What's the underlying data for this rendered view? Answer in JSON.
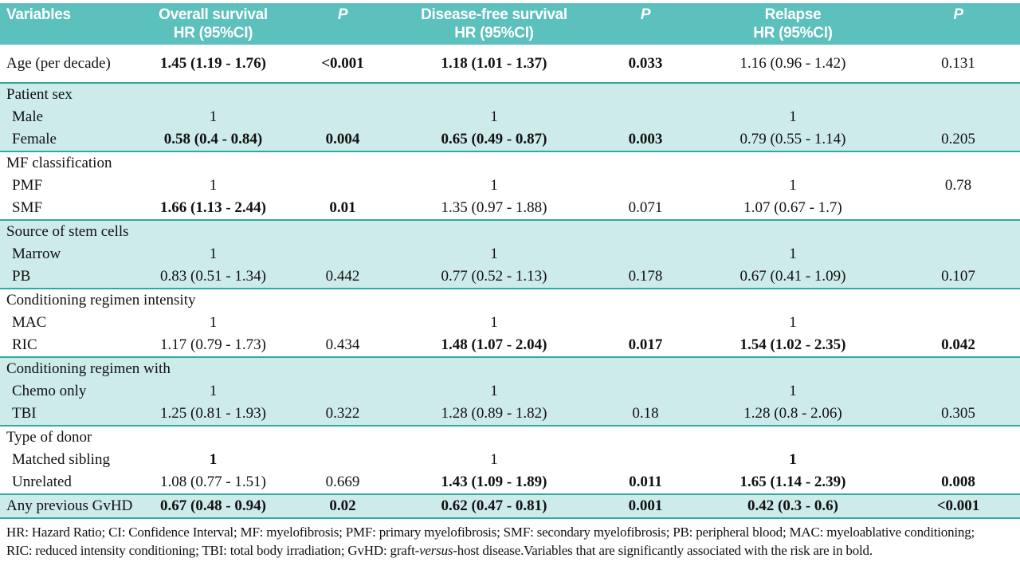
{
  "colors": {
    "header_bg": "#5cc0bc",
    "header_text": "#ffffff",
    "shade_bg": "#cdebe9",
    "line": "#2fa9a5",
    "body_text": "#111111"
  },
  "table": {
    "header": {
      "columns": [
        {
          "label": "Variables",
          "sub": ""
        },
        {
          "label": "Overall survival",
          "sub": "HR (95%CI)"
        },
        {
          "label": "P",
          "sub": ""
        },
        {
          "label": "Disease-free survival",
          "sub": "HR (95%CI)"
        },
        {
          "label": "P",
          "sub": ""
        },
        {
          "label": "Relapse",
          "sub": "HR (95%CI)"
        },
        {
          "label": "P",
          "sub": ""
        }
      ]
    },
    "sections": [
      {
        "shade": false,
        "rows": [
          {
            "label": "Age (per decade)",
            "indent": false,
            "cells": [
              {
                "t": "1.45 (1.19 - 1.76)",
                "b": true
              },
              {
                "t": "<0.001",
                "b": true
              },
              {
                "t": "1.18 (1.01 - 1.37)",
                "b": true
              },
              {
                "t": "0.033",
                "b": true
              },
              {
                "t": "1.16 (0.96 - 1.42)"
              },
              {
                "t": "0.131"
              }
            ]
          }
        ]
      },
      {
        "shade": true,
        "rows": [
          {
            "label": "Patient sex",
            "indent": false
          },
          {
            "label": "Male",
            "indent": true,
            "cells": [
              {
                "t": "1"
              },
              {},
              {
                "t": "1"
              },
              {},
              {
                "t": "1"
              },
              {}
            ]
          },
          {
            "label": "Female",
            "indent": true,
            "cells": [
              {
                "t": "0.58 (0.4 - 0.84)",
                "b": true
              },
              {
                "t": "0.004",
                "b": true
              },
              {
                "t": "0.65 (0.49 - 0.87)",
                "b": true
              },
              {
                "t": "0.003",
                "b": true
              },
              {
                "t": "0.79 (0.55 - 1.14)"
              },
              {
                "t": "0.205"
              }
            ]
          }
        ]
      },
      {
        "shade": false,
        "rows": [
          {
            "label": "MF classification",
            "indent": false
          },
          {
            "label": "PMF",
            "indent": true,
            "cells": [
              {
                "t": "1"
              },
              {},
              {
                "t": "1"
              },
              {},
              {
                "t": "1"
              },
              {
                "t": "0.78"
              }
            ]
          },
          {
            "label": "SMF",
            "indent": true,
            "cells": [
              {
                "t": "1.66 (1.13 - 2.44)",
                "b": true
              },
              {
                "t": "0.01",
                "b": true
              },
              {
                "t": "1.35 (0.97 - 1.88)"
              },
              {
                "t": "0.071"
              },
              {
                "t": "1.07 (0.67 - 1.7)"
              },
              {}
            ]
          }
        ]
      },
      {
        "shade": true,
        "rows": [
          {
            "label": "Source of stem cells",
            "indent": false
          },
          {
            "label": "Marrow",
            "indent": true,
            "cells": [
              {
                "t": "1"
              },
              {},
              {
                "t": "1"
              },
              {},
              {
                "t": "1"
              },
              {}
            ]
          },
          {
            "label": "PB",
            "indent": true,
            "cells": [
              {
                "t": "0.83 (0.51 - 1.34)"
              },
              {
                "t": "0.442"
              },
              {
                "t": "0.77 (0.52 - 1.13)"
              },
              {
                "t": "0.178"
              },
              {
                "t": "0.67 (0.41 - 1.09)"
              },
              {
                "t": "0.107"
              }
            ]
          }
        ]
      },
      {
        "shade": false,
        "rows": [
          {
            "label": "Conditioning regimen intensity",
            "indent": false
          },
          {
            "label": "MAC",
            "indent": true,
            "cells": [
              {
                "t": "1"
              },
              {},
              {
                "t": "1"
              },
              {},
              {
                "t": "1"
              },
              {}
            ]
          },
          {
            "label": "RIC",
            "indent": true,
            "cells": [
              {
                "t": "1.17 (0.79 - 1.73)"
              },
              {
                "t": "0.434"
              },
              {
                "t": "1.48 (1.07 - 2.04)",
                "b": true
              },
              {
                "t": "0.017",
                "b": true
              },
              {
                "t": "1.54 (1.02 - 2.35)",
                "b": true
              },
              {
                "t": "0.042",
                "b": true
              }
            ]
          }
        ]
      },
      {
        "shade": true,
        "rows": [
          {
            "label": "Conditioning regimen with",
            "indent": false
          },
          {
            "label": "Chemo only",
            "indent": true,
            "cells": [
              {
                "t": "1"
              },
              {},
              {
                "t": "1"
              },
              {},
              {
                "t": "1"
              },
              {}
            ]
          },
          {
            "label": "TBI",
            "indent": true,
            "cells": [
              {
                "t": "1.25 (0.81 - 1.93)"
              },
              {
                "t": "0.322"
              },
              {
                "t": "1.28 (0.89 - 1.82)"
              },
              {
                "t": "0.18"
              },
              {
                "t": "1.28 (0.8 - 2.06)"
              },
              {
                "t": "0.305"
              }
            ]
          }
        ]
      },
      {
        "shade": false,
        "rows": [
          {
            "label": "Type of donor",
            "indent": false
          },
          {
            "label": "Matched sibling",
            "indent": true,
            "cells": [
              {
                "t": "1",
                "b": true
              },
              {},
              {
                "t": "1"
              },
              {},
              {
                "t": "1",
                "b": true
              },
              {}
            ]
          },
          {
            "label": "Unrelated",
            "indent": true,
            "cells": [
              {
                "t": "1.08 (0.77 - 1.51)"
              },
              {
                "t": "0.669"
              },
              {
                "t": "1.43 (1.09 - 1.89)",
                "b": true
              },
              {
                "t": "0.011",
                "b": true
              },
              {
                "t": "1.65 (1.14 - 2.39)",
                "b": true
              },
              {
                "t": "0.008",
                "b": true
              }
            ]
          }
        ]
      },
      {
        "shade": true,
        "rows": [
          {
            "label": "Any previous GvHD",
            "indent": false,
            "cells": [
              {
                "t": "0.67 (0.48 - 0.94)",
                "b": true
              },
              {
                "t": "0.02",
                "b": true
              },
              {
                "t": "0.62 (0.47 - 0.81)",
                "b": true
              },
              {
                "t": "0.001",
                "b": true
              },
              {
                "t": "0.42 (0.3 - 0.6)",
                "b": true
              },
              {
                "t": "<0.001",
                "b": true
              }
            ]
          }
        ]
      }
    ]
  },
  "footnote": {
    "line1": "HR: Hazard Ratio; CI: Confidence Interval; MF: myelofibrosis; PMF: primary myelofibrosis; SMF: secondary myelofibrosis; PB: peripheral blood; MAC: myeloablative conditioning;",
    "line2_pre": "RIC: reduced intensity conditioning; TBI: total body irradiation; GvHD: graft-",
    "line2_italic": "versus",
    "line2_post": "-host disease.Variables that are significantly associated with the risk are in bold."
  }
}
